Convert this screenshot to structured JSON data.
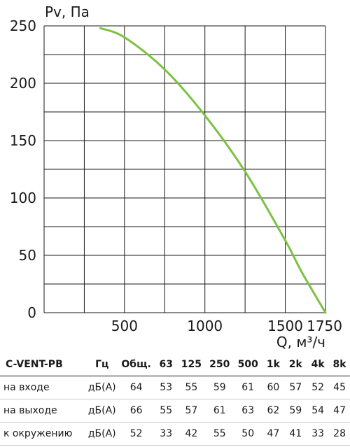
{
  "chart_data": {
    "type": "line",
    "ylabel": "Pv, Па",
    "xlabel": "Q, м³/ч",
    "xlim": [
      0,
      1750
    ],
    "ylim": [
      0,
      250
    ],
    "x_ticks": [
      500,
      1000,
      1500,
      1750
    ],
    "y_ticks": [
      0,
      50,
      100,
      150,
      200,
      250
    ],
    "grid": true,
    "series": [
      {
        "color": "#7cc242",
        "x": [
          350,
          500,
          750,
          1000,
          1250,
          1500,
          1600,
          1750
        ],
        "y": [
          248,
          240,
          212,
          172,
          123,
          63,
          36,
          0
        ]
      }
    ]
  },
  "table": {
    "model": "C-VENT-PB",
    "headers": [
      "Гц",
      "Общ.",
      "63",
      "125",
      "250",
      "500",
      "1k",
      "2k",
      "4k",
      "8k"
    ],
    "rows": [
      {
        "label": "на входе",
        "unit": "дБ(А)",
        "values": [
          "64",
          "53",
          "55",
          "59",
          "61",
          "60",
          "57",
          "52",
          "45"
        ]
      },
      {
        "label": "на выходе",
        "unit": "дБ(А)",
        "values": [
          "66",
          "55",
          "57",
          "61",
          "63",
          "62",
          "59",
          "54",
          "47"
        ]
      },
      {
        "label": "к окружению",
        "unit": "дБ(А)",
        "values": [
          "52",
          "33",
          "42",
          "55",
          "50",
          "47",
          "41",
          "33",
          "28"
        ]
      }
    ]
  }
}
